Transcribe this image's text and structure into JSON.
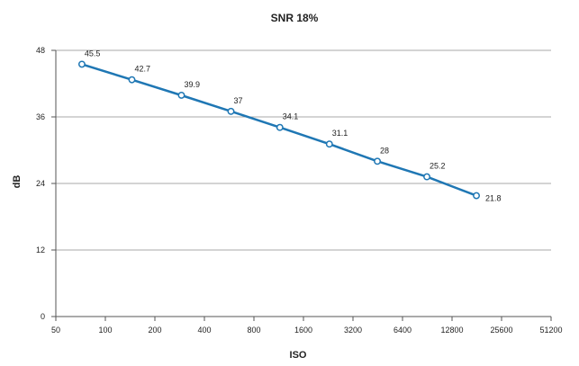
{
  "chart_data": {
    "type": "line",
    "title": "SNR 18%",
    "xlabel": "ISO",
    "ylabel": "dB",
    "x_scale": "log2",
    "x_ticks": [
      50,
      100,
      200,
      400,
      800,
      1600,
      3200,
      6400,
      12800,
      25600,
      51200
    ],
    "x_tick_labels": [
      "50",
      "100",
      "200",
      "400",
      "800",
      "1600",
      "3200",
      "6400",
      "12800",
      "25600",
      "51200"
    ],
    "xlim": [
      50,
      51200
    ],
    "ylim": [
      0,
      48
    ],
    "y_ticks": [
      0,
      12,
      24,
      36,
      48
    ],
    "y_tick_labels": [
      "0",
      "12",
      "24",
      "36",
      "48"
    ],
    "grid": "horizontal",
    "series": [
      {
        "color": "#1f77b4",
        "x": [
          72,
          145,
          290,
          580,
          1150,
          2300,
          4500,
          9000,
          18000
        ],
        "y": [
          45.5,
          42.7,
          39.9,
          37,
          34.1,
          31.1,
          28,
          25.2,
          21.8
        ],
        "labels": [
          "45.5",
          "42.7",
          "39.9",
          "37",
          "34.1",
          "31.1",
          "28",
          "25.2",
          "21.8"
        ]
      }
    ]
  }
}
